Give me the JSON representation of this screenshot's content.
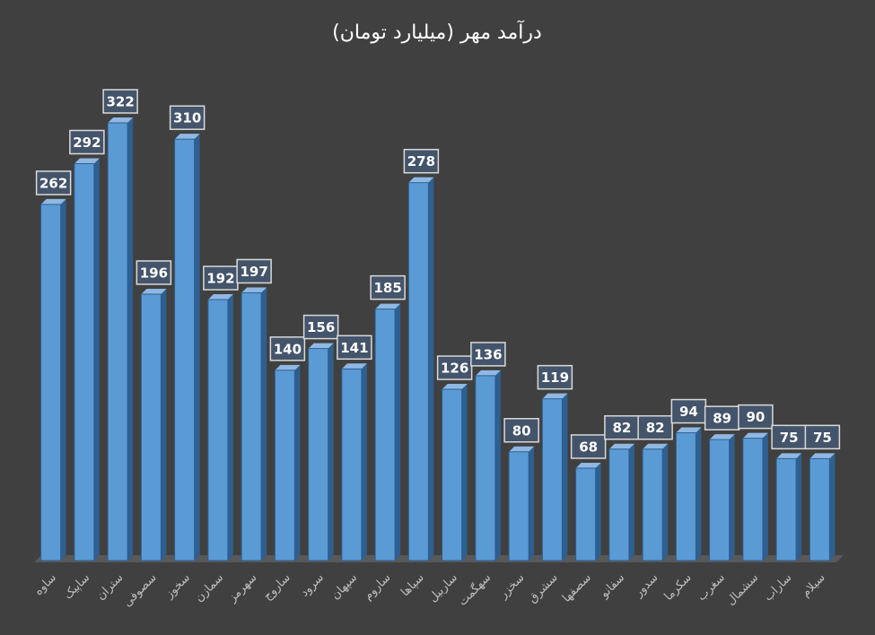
{
  "chart_data": {
    "type": "bar",
    "title": "درآمد مهر (میلیارد تومان)",
    "categories": [
      "ساوه",
      "ساپیک",
      "ستران",
      "سصوفی",
      "سخوز",
      "سمازن",
      "سهرمز",
      "ساروج",
      "سرود",
      "سپهان",
      "ساروم",
      "سپاها",
      "ساربیل",
      "سهگمت",
      "سخزر",
      "سشرق",
      "سصفها",
      "سفانو",
      "سدور",
      "سکرما",
      "سغرب",
      "سشمال",
      "ساراب",
      "سیلام"
    ],
    "values": [
      262,
      292,
      322,
      196,
      310,
      192,
      197,
      140,
      156,
      141,
      185,
      278,
      126,
      136,
      80,
      119,
      68,
      82,
      82,
      94,
      89,
      90,
      75,
      75
    ],
    "color": "#5b9bd5"
  }
}
